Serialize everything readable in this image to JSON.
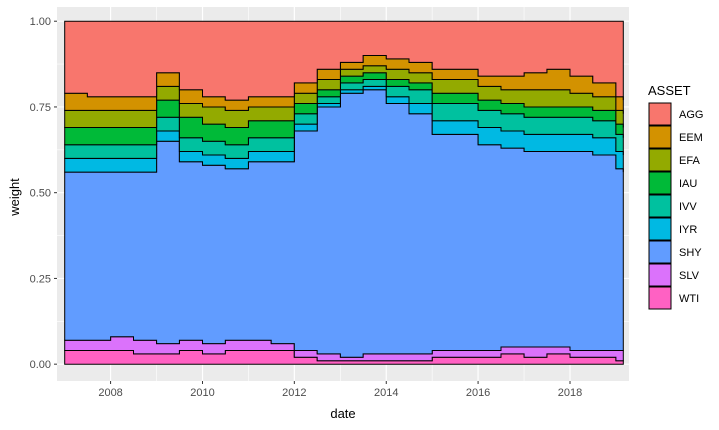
{
  "chart_data": {
    "type": "area",
    "stacked": true,
    "step": true,
    "xlabel": "date",
    "ylabel": "weight",
    "xlim": [
      "2006-11-01",
      "2019-04-15"
    ],
    "ylim": [
      0,
      1
    ],
    "x_ticks": [
      "2008",
      "2010",
      "2012",
      "2014",
      "2016",
      "2018"
    ],
    "y_ticks": [
      "0.00",
      "0.25",
      "0.50",
      "0.75",
      "1.00"
    ],
    "grid": true,
    "legend": {
      "title": "ASSET",
      "position": "right"
    },
    "stack_order_bottom_to_top": [
      "WTI",
      "SLV",
      "SHY",
      "IYR",
      "IVV",
      "IAU",
      "EFA",
      "EEM",
      "AGG"
    ],
    "dates": [
      "2007-01",
      "2007-07",
      "2008-01",
      "2008-07",
      "2009-01",
      "2009-07",
      "2010-01",
      "2010-07",
      "2011-01",
      "2011-07",
      "2012-01",
      "2012-07",
      "2013-01",
      "2013-07",
      "2014-01",
      "2014-07",
      "2015-01",
      "2015-07",
      "2016-01",
      "2016-07",
      "2017-01",
      "2017-07",
      "2018-01",
      "2018-07",
      "2019-01",
      "2019-03"
    ],
    "series": [
      {
        "name": "AGG",
        "color": "#F8766D",
        "values": [
          0.21,
          0.22,
          0.22,
          0.22,
          0.15,
          0.2,
          0.22,
          0.23,
          0.22,
          0.22,
          0.18,
          0.14,
          0.12,
          0.1,
          0.11,
          0.12,
          0.14,
          0.14,
          0.16,
          0.16,
          0.15,
          0.14,
          0.16,
          0.18,
          0.22,
          0.23
        ]
      },
      {
        "name": "EEM",
        "color": "#D39200",
        "values": [
          0.05,
          0.04,
          0.04,
          0.04,
          0.04,
          0.04,
          0.03,
          0.03,
          0.03,
          0.03,
          0.03,
          0.03,
          0.02,
          0.03,
          0.03,
          0.03,
          0.03,
          0.03,
          0.03,
          0.04,
          0.05,
          0.06,
          0.05,
          0.04,
          0.04,
          0.04
        ]
      },
      {
        "name": "EFA",
        "color": "#93AA00",
        "values": [
          0.05,
          0.05,
          0.05,
          0.05,
          0.04,
          0.04,
          0.05,
          0.05,
          0.04,
          0.04,
          0.03,
          0.03,
          0.02,
          0.02,
          0.03,
          0.03,
          0.04,
          0.04,
          0.04,
          0.04,
          0.05,
          0.05,
          0.04,
          0.04,
          0.04,
          0.04
        ]
      },
      {
        "name": "IAU",
        "color": "#00BA38",
        "values": [
          0.05,
          0.05,
          0.05,
          0.05,
          0.05,
          0.06,
          0.05,
          0.05,
          0.05,
          0.05,
          0.03,
          0.02,
          0.02,
          0.02,
          0.02,
          0.02,
          0.03,
          0.03,
          0.03,
          0.03,
          0.03,
          0.03,
          0.03,
          0.03,
          0.03,
          0.03
        ]
      },
      {
        "name": "IVV",
        "color": "#00C19F",
        "values": [
          0.04,
          0.04,
          0.04,
          0.04,
          0.04,
          0.04,
          0.04,
          0.04,
          0.04,
          0.04,
          0.03,
          0.02,
          0.02,
          0.02,
          0.03,
          0.04,
          0.05,
          0.05,
          0.05,
          0.05,
          0.05,
          0.05,
          0.05,
          0.05,
          0.05,
          0.05
        ]
      },
      {
        "name": "IYR",
        "color": "#00B9E3",
        "values": [
          0.04,
          0.04,
          0.04,
          0.04,
          0.03,
          0.03,
          0.03,
          0.03,
          0.03,
          0.03,
          0.02,
          0.01,
          0.01,
          0.01,
          0.02,
          0.03,
          0.04,
          0.04,
          0.05,
          0.05,
          0.05,
          0.05,
          0.05,
          0.05,
          0.05,
          0.05
        ]
      },
      {
        "name": "SHY",
        "color": "#619CFF",
        "values": [
          0.49,
          0.49,
          0.48,
          0.49,
          0.59,
          0.52,
          0.52,
          0.5,
          0.52,
          0.53,
          0.64,
          0.72,
          0.77,
          0.77,
          0.73,
          0.7,
          0.63,
          0.63,
          0.6,
          0.58,
          0.57,
          0.57,
          0.58,
          0.57,
          0.53,
          0.52
        ]
      },
      {
        "name": "SLV",
        "color": "#DB72FB",
        "values": [
          0.03,
          0.03,
          0.04,
          0.04,
          0.03,
          0.03,
          0.03,
          0.03,
          0.03,
          0.02,
          0.02,
          0.02,
          0.01,
          0.02,
          0.02,
          0.02,
          0.02,
          0.02,
          0.02,
          0.02,
          0.03,
          0.02,
          0.02,
          0.02,
          0.03,
          0.03
        ]
      },
      {
        "name": "WTI",
        "color": "#FF61C3",
        "values": [
          0.04,
          0.04,
          0.04,
          0.03,
          0.03,
          0.04,
          0.03,
          0.04,
          0.04,
          0.04,
          0.02,
          0.01,
          0.01,
          0.01,
          0.01,
          0.01,
          0.02,
          0.02,
          0.02,
          0.03,
          0.02,
          0.03,
          0.02,
          0.02,
          0.01,
          0.01
        ]
      }
    ]
  }
}
